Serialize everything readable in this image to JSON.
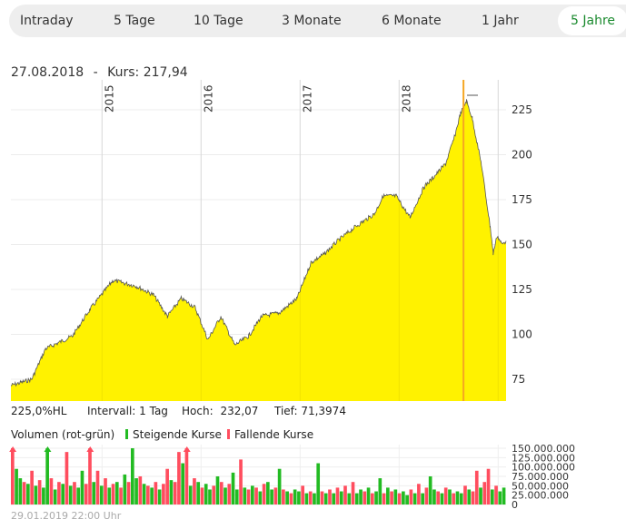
{
  "tabs": [
    "Intraday",
    "5 Tage",
    "10 Tage",
    "3 Monate",
    "6 Monate",
    "1 Jahr",
    "5 Jahre"
  ],
  "active_tab": "5 Jahre",
  "header": {
    "date": "27.08.2018",
    "sep": "-",
    "kurs": "Kurs: 217,94"
  },
  "info": {
    "hl": "225,0%HL",
    "interval": "Intervall: 1 Tag",
    "high_label": "Hoch:",
    "high": "232,07",
    "low": "Tief: 71,3974"
  },
  "volume_legend": {
    "title": "Volumen (rot-grün)",
    "up": "Steigende Kurse",
    "down": "Fallende Kurse"
  },
  "footer": "29.01.2019 22:00 Uhr",
  "colors": {
    "area": "#fff200",
    "line": "#555555",
    "up": "#22bb22",
    "down": "#ff4d5e",
    "marker": "#f5a623",
    "active": "#1a8a2e"
  },
  "chart_data": [
    {
      "type": "area",
      "title": "Kurs",
      "xlim": [
        2014.08,
        2019.08
      ],
      "ylim": [
        60,
        240
      ],
      "year_ticks": [
        {
          "x": 2015,
          "label": "2015"
        },
        {
          "x": 2016,
          "label": "2016"
        },
        {
          "x": 2017,
          "label": "2017"
        },
        {
          "x": 2018,
          "label": "2018"
        },
        {
          "x": 2019,
          "label": ""
        }
      ],
      "y_ticks": [
        75,
        100,
        125,
        150,
        175,
        200,
        225
      ],
      "marker_x": 2018.65,
      "x": [
        2014.08,
        2014.29,
        2014.43,
        2014.7,
        2014.88,
        2015.11,
        2015.34,
        2015.52,
        2015.66,
        2015.8,
        2015.94,
        2016.07,
        2016.2,
        2016.34,
        2016.48,
        2016.61,
        2016.79,
        2016.97,
        2017.11,
        2017.25,
        2017.38,
        2017.56,
        2017.75,
        2017.84,
        2017.97,
        2018.11,
        2018.25,
        2018.34,
        2018.47,
        2018.56,
        2018.62,
        2018.68,
        2018.74,
        2018.83,
        2018.92,
        2018.95,
        2018.99,
        2019.04,
        2019.08
      ],
      "y": [
        71.5,
        75,
        92,
        99,
        114,
        130,
        127,
        122,
        110,
        120,
        115,
        97,
        110,
        94,
        99,
        110,
        112,
        120,
        140,
        145,
        152,
        160,
        167,
        177,
        177,
        165,
        182,
        187,
        195,
        210,
        223,
        230,
        220,
        195,
        160,
        145,
        155,
        150,
        152
      ]
    },
    {
      "type": "bar",
      "title": "Volumen",
      "ylim": [
        0,
        160000000
      ],
      "y_ticks": [
        {
          "v": 0,
          "label": "0"
        },
        {
          "v": 25000000,
          "label": "25.000.000"
        },
        {
          "v": 50000000,
          "label": "50.000.000"
        },
        {
          "v": 75000000,
          "label": "75.000.000"
        },
        {
          "v": 100000000,
          "label": "100.000.000"
        },
        {
          "v": 125000000,
          "label": "125.000.000"
        },
        {
          "v": 150000000,
          "label": "150.000.000"
        }
      ],
      "volumes_m": [
        160,
        95,
        70,
        60,
        55,
        90,
        50,
        65,
        45,
        160,
        70,
        40,
        60,
        55,
        140,
        50,
        60,
        45,
        90,
        55,
        160,
        60,
        90,
        50,
        70,
        45,
        55,
        60,
        45,
        80,
        60,
        150,
        70,
        75,
        55,
        50,
        45,
        60,
        40,
        55,
        95,
        65,
        60,
        140,
        110,
        160,
        50,
        70,
        60,
        45,
        55,
        40,
        50,
        75,
        60,
        45,
        55,
        85,
        40,
        120,
        45,
        40,
        50,
        45,
        35,
        55,
        60,
        40,
        45,
        95,
        40,
        35,
        30,
        40,
        35,
        50,
        30,
        35,
        30,
        110,
        35,
        30,
        40,
        30,
        45,
        35,
        50,
        30,
        60,
        30,
        40,
        35,
        45,
        30,
        35,
        70,
        30,
        45,
        35,
        40,
        30,
        35,
        25,
        40,
        30,
        55,
        30,
        45,
        75,
        40,
        35,
        30,
        45,
        40,
        30,
        35,
        30,
        50,
        40,
        35,
        90,
        45,
        60,
        95,
        40,
        50,
        35,
        45
      ],
      "up": [
        0,
        1,
        1,
        0,
        1,
        0,
        1,
        0,
        1,
        1,
        0,
        1,
        0,
        1,
        0,
        1,
        0,
        1,
        1,
        0,
        0,
        1,
        0,
        1,
        0,
        1,
        0,
        1,
        0,
        1,
        0,
        1,
        1,
        0,
        1,
        0,
        1,
        0,
        1,
        0,
        0,
        1,
        0,
        0,
        1,
        0,
        1,
        0,
        1,
        0,
        1,
        1,
        0,
        1,
        0,
        1,
        0,
        1,
        1,
        0,
        1,
        0,
        1,
        0,
        1,
        0,
        1,
        1,
        0,
        1,
        0,
        1,
        0,
        1,
        1,
        0,
        1,
        0,
        1,
        1,
        0,
        1,
        0,
        1,
        0,
        1,
        0,
        1,
        0,
        1,
        1,
        0,
        1,
        0,
        1,
        1,
        0,
        1,
        0,
        1,
        0,
        1,
        1,
        0,
        1,
        0,
        1,
        0,
        1,
        1,
        0,
        1,
        0,
        1,
        0,
        1,
        1,
        0,
        1,
        0,
        0,
        1,
        0,
        0,
        1,
        0,
        1,
        1
      ]
    }
  ]
}
